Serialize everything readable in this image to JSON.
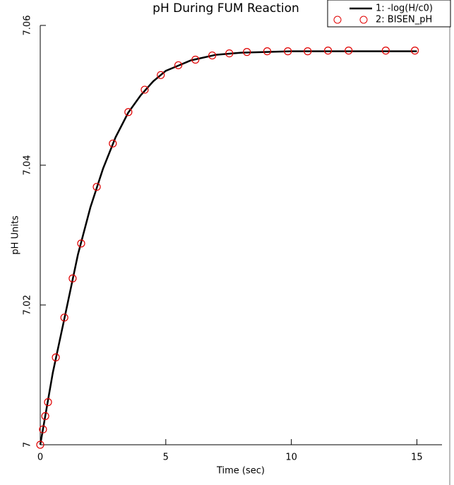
{
  "chart_data": {
    "type": "line",
    "title": "pH During FUM Reaction",
    "xlabel": "Time (sec)",
    "ylabel": "pH Units",
    "xlim": [
      0,
      16
    ],
    "ylim": [
      7,
      7.06
    ],
    "xticks": [
      0,
      5,
      10,
      15
    ],
    "yticks": [
      7,
      7.02,
      7.04,
      7.06
    ],
    "series": [
      {
        "name": "1: -log(H/c0)",
        "color": "#000000",
        "mode": "line",
        "x": [
          0,
          0.5,
          1,
          1.5,
          2,
          2.5,
          3,
          3.5,
          4,
          4.5,
          5,
          6,
          7,
          8,
          10,
          15
        ],
        "values": [
          7.0,
          7.0103,
          7.0187,
          7.0272,
          7.034,
          7.0395,
          7.044,
          7.0475,
          7.05,
          7.052,
          7.0535,
          7.055,
          7.0558,
          7.0561,
          7.0563,
          7.0563
        ]
      },
      {
        "name": "2: BISEN_pH",
        "color": "#e00000",
        "mode": "markers",
        "x": [
          0,
          0.11,
          0.2,
          0.31,
          0.62,
          0.96,
          1.29,
          1.63,
          2.25,
          2.89,
          3.51,
          4.16,
          4.8,
          5.5,
          6.18,
          6.85,
          7.53,
          8.23,
          9.04,
          9.86,
          10.65,
          11.46,
          12.28,
          13.76,
          14.92
        ],
        "values": [
          7.0,
          7.0022,
          7.0041,
          7.0061,
          7.0125,
          7.0182,
          7.0238,
          7.0288,
          7.0369,
          7.0431,
          7.0476,
          7.0508,
          7.0529,
          7.0543,
          7.0551,
          7.0557,
          7.056,
          7.0562,
          7.0563,
          7.0563,
          7.0563,
          7.0564,
          7.0564,
          7.0564,
          7.0564
        ]
      }
    ]
  }
}
